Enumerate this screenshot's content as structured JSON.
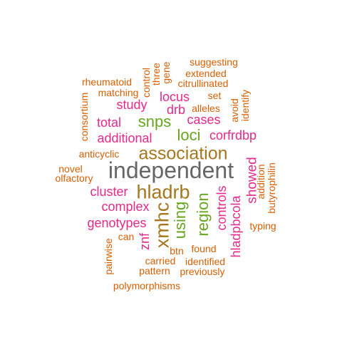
{
  "colors": {
    "orange": "#d95f02",
    "magenta": "#e7298a",
    "green": "#66a61e",
    "brown": "#a6761d",
    "gray": "#666666"
  },
  "words": [
    {
      "text": "independent",
      "color": "#666666"
    },
    {
      "text": "association",
      "color": "#a6761d"
    },
    {
      "text": "hladrb",
      "color": "#a6761d"
    },
    {
      "text": "xmhc",
      "color": "#a6761d"
    },
    {
      "text": "region",
      "color": "#66a61e"
    },
    {
      "text": "using",
      "color": "#66a61e"
    },
    {
      "text": "snps",
      "color": "#66a61e"
    },
    {
      "text": "loci",
      "color": "#66a61e"
    },
    {
      "text": "showed",
      "color": "#e7298a"
    },
    {
      "text": "controls",
      "color": "#e7298a"
    },
    {
      "text": "hladpbcola",
      "color": "#e7298a"
    },
    {
      "text": "complex",
      "color": "#e7298a"
    },
    {
      "text": "genotypes",
      "color": "#e7298a"
    },
    {
      "text": "cluster",
      "color": "#e7298a"
    },
    {
      "text": "additional",
      "color": "#e7298a"
    },
    {
      "text": "total",
      "color": "#e7298a"
    },
    {
      "text": "study",
      "color": "#e7298a"
    },
    {
      "text": "locus",
      "color": "#e7298a"
    },
    {
      "text": "drb",
      "color": "#e7298a"
    },
    {
      "text": "cases",
      "color": "#e7298a"
    },
    {
      "text": "corfrdbp",
      "color": "#e7298a"
    },
    {
      "text": "znf",
      "color": "#e7298a"
    },
    {
      "text": "suggesting",
      "color": "#d95f02"
    },
    {
      "text": "extended",
      "color": "#d95f02"
    },
    {
      "text": "rheumatoid",
      "color": "#d95f02"
    },
    {
      "text": "citrullinated",
      "color": "#d95f02"
    },
    {
      "text": "matching",
      "color": "#d95f02"
    },
    {
      "text": "control",
      "color": "#d95f02"
    },
    {
      "text": "three",
      "color": "#d95f02"
    },
    {
      "text": "gene",
      "color": "#d95f02"
    },
    {
      "text": "set",
      "color": "#d95f02"
    },
    {
      "text": "identify",
      "color": "#d95f02"
    },
    {
      "text": "avoid",
      "color": "#d95f02"
    },
    {
      "text": "alleles",
      "color": "#d95f02"
    },
    {
      "text": "consortium",
      "color": "#d95f02"
    },
    {
      "text": "anticyclic",
      "color": "#d95f02"
    },
    {
      "text": "novel",
      "color": "#d95f02"
    },
    {
      "text": "olfactory",
      "color": "#d95f02"
    },
    {
      "text": "addition",
      "color": "#d95f02"
    },
    {
      "text": "butyrophilin",
      "color": "#d95f02"
    },
    {
      "text": "typing",
      "color": "#d95f02"
    },
    {
      "text": "can",
      "color": "#d95f02"
    },
    {
      "text": "pairwise",
      "color": "#d95f02"
    },
    {
      "text": "btn",
      "color": "#d95f02"
    },
    {
      "text": "found",
      "color": "#d95f02"
    },
    {
      "text": "carried",
      "color": "#d95f02"
    },
    {
      "text": "identified",
      "color": "#d95f02"
    },
    {
      "text": "pattern",
      "color": "#d95f02"
    },
    {
      "text": "previously",
      "color": "#d95f02"
    },
    {
      "text": "polymorphisms",
      "color": "#d95f02"
    }
  ]
}
